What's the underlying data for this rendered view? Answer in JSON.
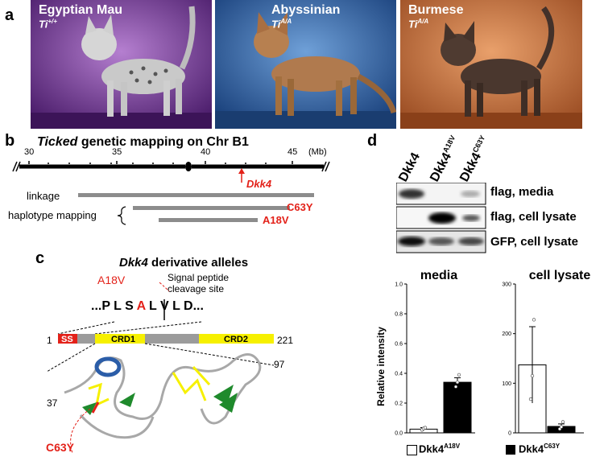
{
  "panels": {
    "a": "a",
    "b": "b",
    "c": "c",
    "d": "d"
  },
  "panel_a": {
    "cats": [
      {
        "name": "Egyptian Mau",
        "genotype_base": "Ti",
        "genotype_sup": "+/+"
      },
      {
        "name": "Abyssinian",
        "genotype_base": "Ti",
        "genotype_sup": "A/A"
      },
      {
        "name": "Burmese",
        "genotype_base": "Ti",
        "genotype_sup": "A/A"
      }
    ]
  },
  "panel_b": {
    "title_italic": "Ticked",
    "title_rest": " genetic mapping on Chr B1",
    "ticks": [
      "30",
      "35",
      "40",
      "45"
    ],
    "unit": "(Mb)",
    "gene": "Dkk4",
    "linkage": "linkage",
    "haplotype": "haplotype mapping",
    "c63y": "C63Y",
    "a18v": "A18V"
  },
  "panel_c": {
    "title_italic": "Dkk4",
    "title_rest": " derivative alleles",
    "a18v": "A18V",
    "signal": "Signal peptide",
    "cleavage": "cleavage site",
    "seq_left": "...P L S",
    "seq_red": "A",
    "seq_right": "L V L D...",
    "domain_start": "1",
    "domain_end": "221",
    "ss": "SS",
    "crd1": "CRD1",
    "crd2": "CRD2",
    "res97": "97",
    "res37": "37",
    "c63y": "C63Y"
  },
  "panel_d": {
    "lanes": [
      {
        "base": "Dkk4",
        "sup": ""
      },
      {
        "base": "Dkk4",
        "sup": "A18V"
      },
      {
        "base": "Dkk4",
        "sup": "C63Y"
      }
    ],
    "blots": [
      "flag, media",
      "flag, cell lysate",
      "GFP, cell lysate"
    ],
    "ylabel": "Relative intensity",
    "legend": [
      {
        "base": "Dkk4",
        "sup": "A18V",
        "color": "#ffffff"
      },
      {
        "base": "Dkk4",
        "sup": "C63Y",
        "color": "#000000"
      }
    ]
  },
  "chart_data": [
    {
      "type": "bar",
      "title": "media",
      "ylabel": "Relative intensity",
      "categories": [
        "Dkk4A18V",
        "Dkk4C63Y"
      ],
      "values": [
        0.025,
        0.34
      ],
      "errors": [
        0.01,
        0.03
      ],
      "points": [
        [
          0.02,
          0.03,
          0.035
        ],
        [
          0.31,
          0.34,
          0.39
        ]
      ],
      "colors": [
        "#ffffff",
        "#000000"
      ],
      "ylim": [
        0,
        1.0
      ],
      "yticks": [
        "0.0",
        "0.2",
        "0.4",
        "0.6",
        "0.8",
        "1.0"
      ],
      "yticks_values": [
        0,
        0.2,
        0.4,
        0.6,
        0.8,
        1.0
      ]
    },
    {
      "type": "bar",
      "title": "cell lysate",
      "categories": [
        "Dkk4A18V",
        "Dkk4C63Y"
      ],
      "values": [
        137,
        13
      ],
      "errors": [
        77,
        5
      ],
      "points": [
        [
          68,
          115,
          228
        ],
        [
          8,
          12,
          22
        ]
      ],
      "colors": [
        "#ffffff",
        "#000000"
      ],
      "ylim": [
        0,
        300
      ],
      "yticks": [
        "0",
        "100",
        "200",
        "300"
      ],
      "yticks_values": [
        0,
        100,
        200,
        300
      ]
    }
  ]
}
